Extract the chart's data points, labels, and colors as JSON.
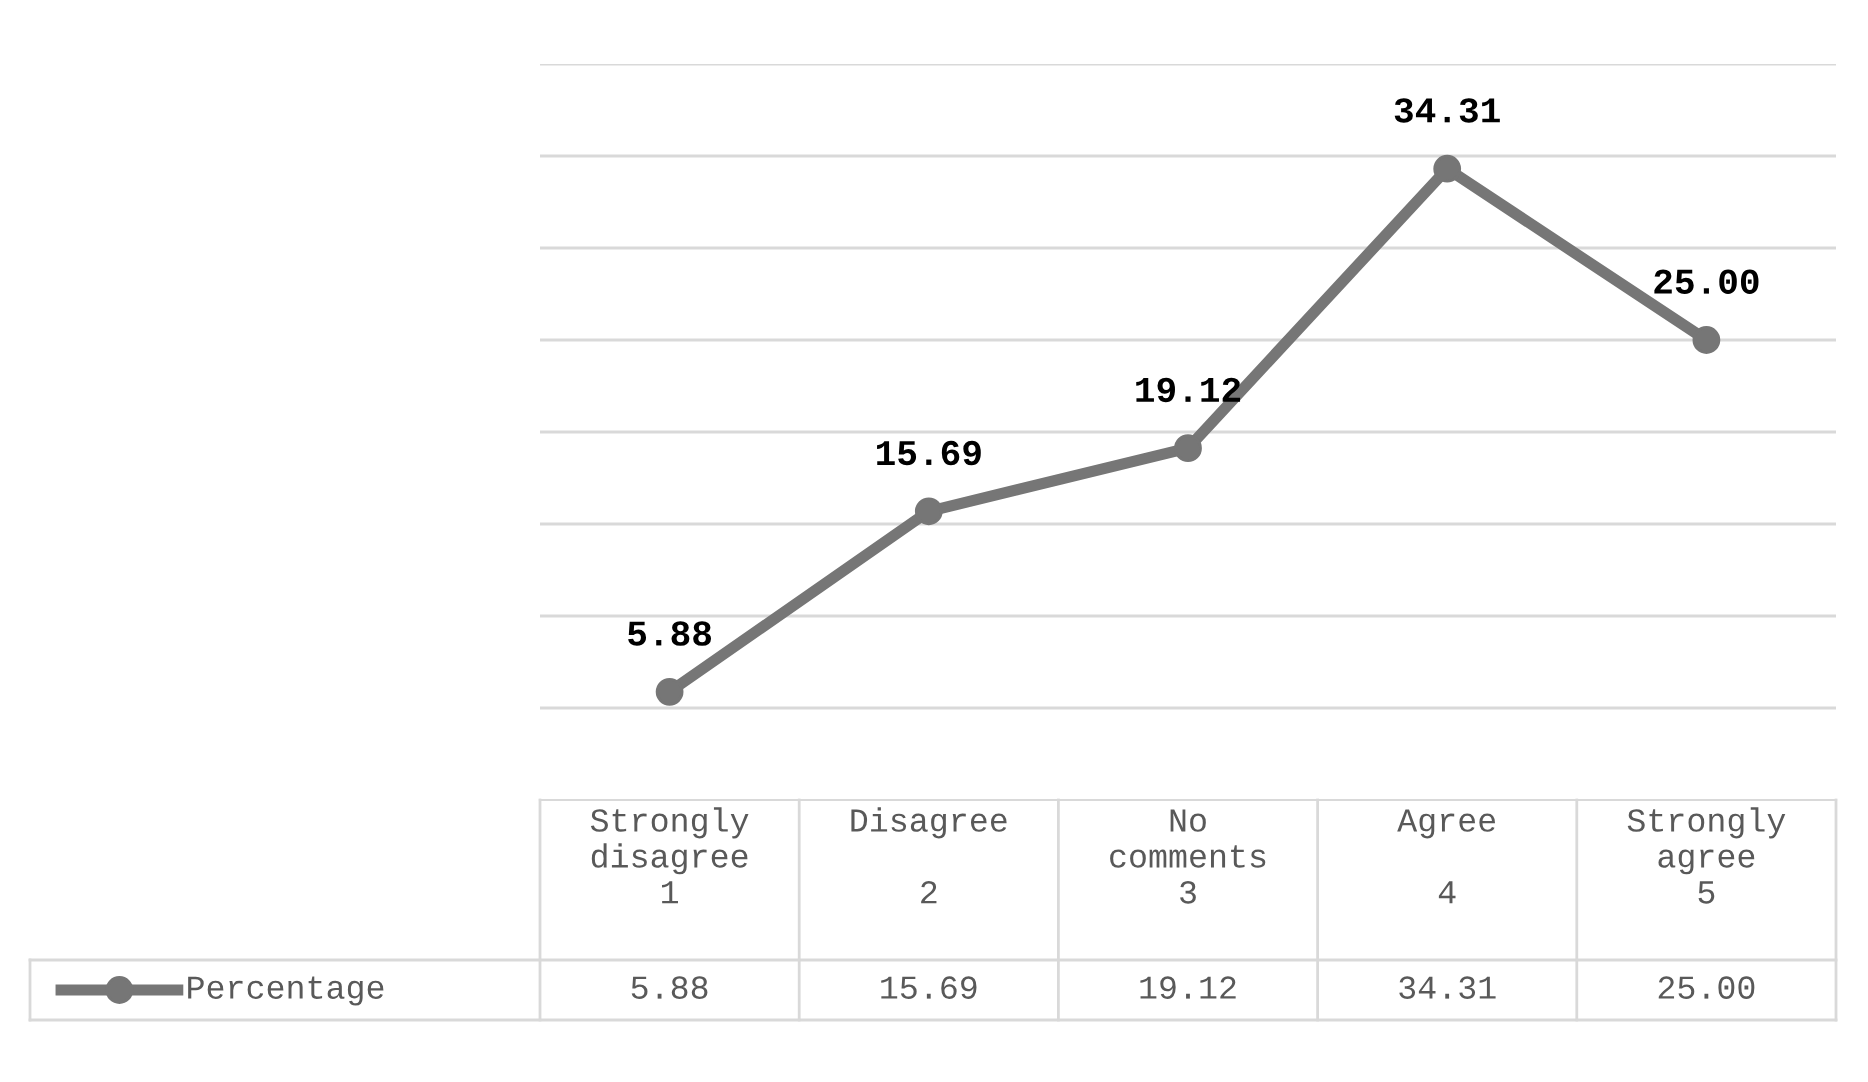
{
  "chart_data": {
    "type": "line",
    "categories": [
      "Strongly\ndisagree\n1",
      "Disagree\n\n2",
      "No\ncomments\n3",
      "Agree\n\n4",
      "Strongly\nagree\n5"
    ],
    "series": [
      {
        "name": "Percentage",
        "color": "#767676",
        "values": [
          5.88,
          15.69,
          19.12,
          34.31,
          25.0
        ],
        "value_labels": [
          "5.88",
          "15.69",
          "19.12",
          "34.31",
          "25.00"
        ]
      }
    ],
    "ylim": [
      0,
      40
    ],
    "yticks": [
      {
        "value": 5,
        "label": null
      },
      {
        "value": 10,
        "label": null
      },
      {
        "value": 15,
        "label": null
      },
      {
        "value": 20,
        "label": null
      },
      {
        "value": 25,
        "label": null
      },
      {
        "value": 30,
        "label": null
      },
      {
        "value": 35,
        "label": null
      },
      {
        "value": 40,
        "label": null
      }
    ],
    "grid": "y",
    "legend": "bottom",
    "marker": "circle",
    "line_style": "solid",
    "tick_labels": "x"
  }
}
